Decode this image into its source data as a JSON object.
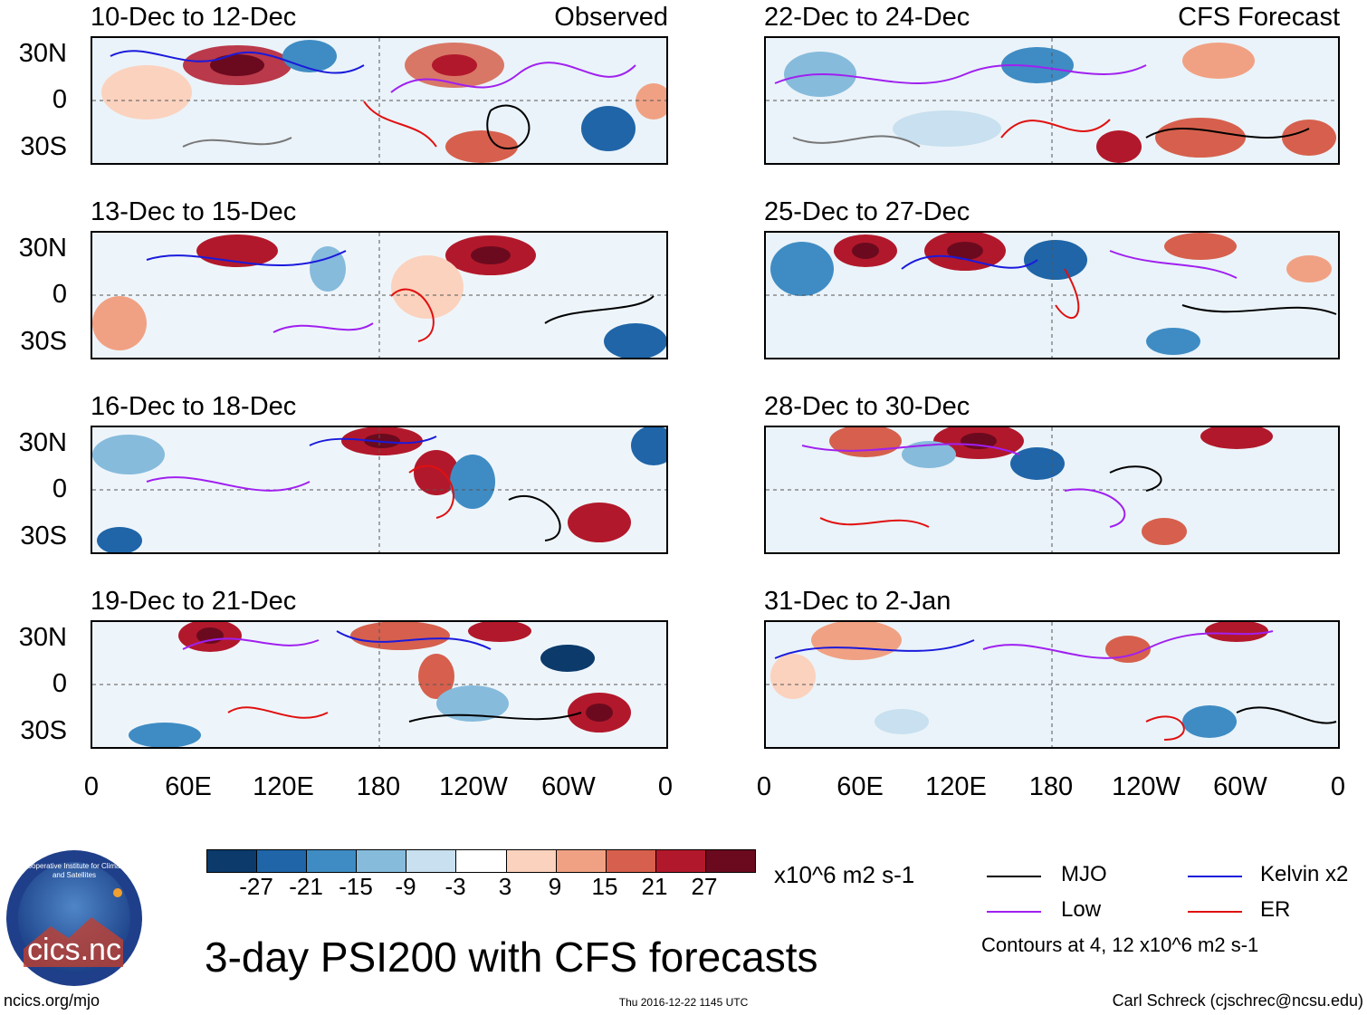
{
  "panels": [
    {
      "title": "10-Dec to 12-Dec",
      "tag": "Observed"
    },
    {
      "title": "22-Dec to 24-Dec",
      "tag": "CFS Forecast"
    },
    {
      "title": "13-Dec to 15-Dec",
      "tag": ""
    },
    {
      "title": "25-Dec to 27-Dec",
      "tag": ""
    },
    {
      "title": "16-Dec to 18-Dec",
      "tag": ""
    },
    {
      "title": "28-Dec to 30-Dec",
      "tag": ""
    },
    {
      "title": "19-Dec to 21-Dec",
      "tag": ""
    },
    {
      "title": "31-Dec to 2-Jan",
      "tag": ""
    }
  ],
  "lat_labels": [
    "30N",
    "0",
    "30S"
  ],
  "lon_labels": [
    "0",
    "60E",
    "120E",
    "180",
    "120W",
    "60W",
    "0"
  ],
  "colorbar": {
    "ticks": [
      "-27",
      "-21",
      "-15",
      "-9",
      "-3",
      "3",
      "9",
      "15",
      "21",
      "27"
    ],
    "colors": [
      "#0b3a6b",
      "#1f65a8",
      "#3f8cc4",
      "#86bbdc",
      "#c8e0ef",
      "#ffffff",
      "#fbd2be",
      "#f1a183",
      "#d6604d",
      "#b2182b",
      "#6b0a1f"
    ],
    "units": "x10^6 m2 s-1"
  },
  "legend": {
    "mjo": {
      "label": "MJO",
      "color": "#000000"
    },
    "kelvin": {
      "label": "Kelvin x2",
      "color": "#1a1adc"
    },
    "low": {
      "label": "Low",
      "color": "#a020f0"
    },
    "er": {
      "label": "ER",
      "color": "#e01010"
    },
    "contours_note": "Contours at 4, 12 x10^6 m2 s-1"
  },
  "main_title": "3-day PSI200 with CFS forecasts",
  "logo_text": "cics.nc",
  "logo_ring_text": "Cooperative Institute for Climate and Satellites",
  "footer": {
    "left": "ncics.org/mjo",
    "center": "Thu 2016-12-22 1145 UTC",
    "right": "Carl Schreck (cjschrec@ncsu.edu)"
  }
}
